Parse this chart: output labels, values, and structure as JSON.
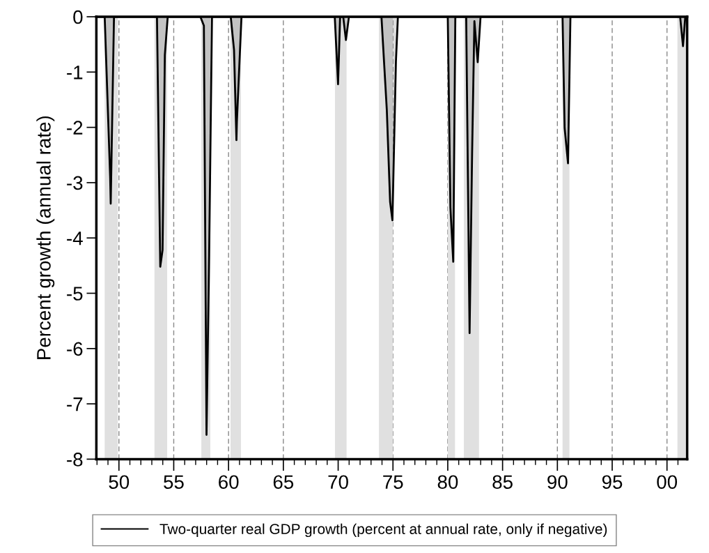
{
  "chart_data": {
    "type": "area",
    "ylabel": "Percent growth (annual rate)",
    "series": [
      {
        "name": "Two-quarter real GDP growth (percent at annual rate, only if negative)",
        "color": "#000000",
        "x": [
          1948.0,
          1948.7,
          1949.2,
          1949.25,
          1949.55,
          1953.47,
          1953.77,
          1953.98,
          1954.19,
          1954.45,
          1957.43,
          1957.75,
          1957.99,
          1958.23,
          1958.49,
          1960.2,
          1960.5,
          1960.72,
          1960.76,
          1961.18,
          1969.69,
          1969.99,
          1970.18,
          1970.46,
          1970.71,
          1970.98,
          1973.95,
          1974.44,
          1974.74,
          1974.95,
          1975.27,
          1975.45,
          1980.0,
          1980.24,
          1980.5,
          1980.69,
          1981.68,
          1981.99,
          1982.22,
          1982.43,
          1982.73,
          1982.99,
          1990.47,
          1990.66,
          1990.97,
          1991.19,
          2001.2,
          2001.46,
          2001.67,
          2001.84
        ],
        "values": [
          0,
          0,
          -2.9,
          -3.38,
          0,
          0,
          -4.52,
          -4.22,
          -0.69,
          0,
          0,
          -0.16,
          -7.56,
          -4.3,
          0,
          0,
          -0.6,
          -2.23,
          -1.9,
          0,
          0,
          -1.22,
          0,
          0,
          -0.42,
          0,
          0,
          -1.69,
          -3.35,
          -3.68,
          -0.81,
          0,
          0,
          -3.45,
          -4.43,
          0,
          0,
          -5.72,
          -2.48,
          -0.08,
          -0.82,
          0,
          0,
          -2.01,
          -2.65,
          0,
          0,
          -0.53,
          0,
          0
        ]
      }
    ],
    "bands": [
      {
        "axis": "x",
        "from": 1948.7,
        "to": 1949.9,
        "color": "#e0e0e0"
      },
      {
        "axis": "x",
        "from": 1953.24,
        "to": 1954.4,
        "color": "#e0e0e0"
      },
      {
        "axis": "x",
        "from": 1957.52,
        "to": 1958.34,
        "color": "#e0e0e0"
      },
      {
        "axis": "x",
        "from": 1960.18,
        "to": 1961.13,
        "color": "#e0e0e0"
      },
      {
        "axis": "x",
        "from": 1969.71,
        "to": 1970.77,
        "color": "#e0e0e0"
      },
      {
        "axis": "x",
        "from": 1973.72,
        "to": 1975.0,
        "color": "#e0e0e0"
      },
      {
        "axis": "x",
        "from": 1980.0,
        "to": 1980.66,
        "color": "#e0e0e0"
      },
      {
        "axis": "x",
        "from": 1981.47,
        "to": 1982.85,
        "color": "#e0e0e0"
      },
      {
        "axis": "x",
        "from": 1990.47,
        "to": 1991.1,
        "color": "#e0e0e0"
      },
      {
        "axis": "x",
        "from": 2000.95,
        "to": 2001.84,
        "color": "#e0e0e0"
      }
    ],
    "xlim": [
      1947.94,
      2001.84
    ],
    "xticks": [
      {
        "value": 1950,
        "label": "50"
      },
      {
        "value": 1955,
        "label": "55"
      },
      {
        "value": 1960,
        "label": "60"
      },
      {
        "value": 1965,
        "label": "65"
      },
      {
        "value": 1970,
        "label": "70"
      },
      {
        "value": 1975,
        "label": "75"
      },
      {
        "value": 1980,
        "label": "80"
      },
      {
        "value": 1985,
        "label": "85"
      },
      {
        "value": 1990,
        "label": "90"
      },
      {
        "value": 1995,
        "label": "95"
      },
      {
        "value": 2000,
        "label": "00"
      }
    ],
    "ylim": [
      -8,
      0
    ],
    "yticks": [
      -8,
      -7,
      -6,
      -5,
      -4,
      -3,
      -2,
      -1,
      0
    ],
    "grid": "x",
    "legend": "bottom"
  }
}
